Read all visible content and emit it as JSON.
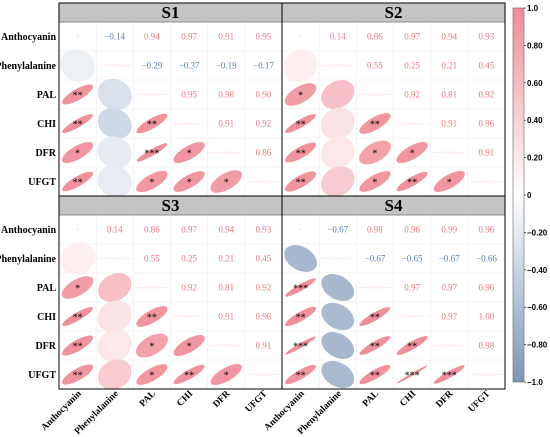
{
  "chart_data": {
    "type": "heatmap",
    "variables": [
      "Anthocyanin",
      "Phenylalanine",
      "PAL",
      "CHI",
      "DFR",
      "UFGT"
    ],
    "panels": [
      {
        "title": "S1",
        "r": [
          [
            null,
            -0.14,
            0.94,
            0.97,
            0.91,
            0.95
          ],
          [
            -0.14,
            null,
            -0.29,
            -0.37,
            -0.19,
            -0.17
          ],
          [
            0.94,
            -0.29,
            null,
            0.95,
            0.98,
            0.9
          ],
          [
            0.97,
            -0.37,
            0.95,
            null,
            0.91,
            0.92
          ],
          [
            0.91,
            -0.19,
            0.98,
            0.91,
            null,
            0.86
          ],
          [
            0.95,
            -0.17,
            0.9,
            0.92,
            0.86,
            null
          ]
        ],
        "labels": [
          [
            "",
            "−0.14",
            "0.94",
            "0.97",
            "0.91",
            "0.95"
          ],
          [
            "",
            "",
            "−0.29",
            "−0.37",
            "−0.19",
            "−0.17"
          ],
          [
            "",
            "",
            "",
            "0.95",
            "0.98",
            "0.90"
          ],
          [
            "",
            "",
            "",
            "",
            "0.91",
            "0.92"
          ],
          [
            "",
            "",
            "",
            "",
            "",
            "0.86"
          ],
          [
            "",
            "",
            "",
            "",
            "",
            ""
          ]
        ],
        "stars": [
          [
            "",
            "",
            "",
            "",
            "",
            ""
          ],
          [
            "",
            "",
            "",
            "",
            "",
            ""
          ],
          [
            "**",
            "",
            "",
            "",
            "",
            ""
          ],
          [
            "**",
            "",
            "**",
            "",
            "",
            ""
          ],
          [
            "*",
            "",
            "***",
            "*",
            "",
            ""
          ],
          [
            "**",
            "",
            "*",
            "*",
            "*",
            ""
          ]
        ]
      },
      {
        "title": "S2",
        "r": [
          [
            null,
            0.14,
            0.86,
            0.97,
            0.94,
            0.93
          ],
          [
            0.14,
            null,
            0.55,
            0.25,
            0.21,
            0.45
          ],
          [
            0.86,
            0.55,
            null,
            0.92,
            0.81,
            0.92
          ],
          [
            0.97,
            0.25,
            0.92,
            null,
            0.91,
            0.96
          ],
          [
            0.94,
            0.21,
            0.81,
            0.91,
            null,
            0.91
          ],
          [
            0.93,
            0.45,
            0.92,
            0.96,
            0.91,
            null
          ]
        ],
        "labels": [
          [
            "",
            "0.14",
            "0.86",
            "0.97",
            "0.94",
            "0.93"
          ],
          [
            "",
            "",
            "0.55",
            "0.25",
            "0.21",
            "0.45"
          ],
          [
            "",
            "",
            "",
            "0.92",
            "0.81",
            "0.92"
          ],
          [
            "",
            "",
            "",
            "",
            "0.91",
            "0.96"
          ],
          [
            "",
            "",
            "",
            "",
            "",
            "0.91"
          ],
          [
            "",
            "",
            "",
            "",
            "",
            ""
          ]
        ],
        "stars": [
          [
            "",
            "",
            "",
            "",
            "",
            ""
          ],
          [
            "",
            "",
            "",
            "",
            "",
            ""
          ],
          [
            "*",
            "",
            "",
            "",
            "",
            ""
          ],
          [
            "**",
            "",
            "**",
            "",
            "",
            ""
          ],
          [
            "**",
            "",
            "*",
            "*",
            "",
            ""
          ],
          [
            "**",
            "",
            "*",
            "**",
            "*",
            ""
          ]
        ]
      },
      {
        "title": "S3",
        "r": [
          [
            null,
            0.14,
            0.86,
            0.97,
            0.94,
            0.93
          ],
          [
            0.14,
            null,
            0.55,
            0.25,
            0.21,
            0.45
          ],
          [
            0.86,
            0.55,
            null,
            0.92,
            0.81,
            0.92
          ],
          [
            0.97,
            0.25,
            0.92,
            null,
            0.91,
            0.96
          ],
          [
            0.94,
            0.21,
            0.81,
            0.91,
            null,
            0.91
          ],
          [
            0.93,
            0.45,
            0.92,
            0.96,
            0.91,
            null
          ]
        ],
        "labels": [
          [
            "",
            "0.14",
            "0.86",
            "0.97",
            "0.94",
            "0.93"
          ],
          [
            "",
            "",
            "0.55",
            "0.25",
            "0.21",
            "0.45"
          ],
          [
            "",
            "",
            "",
            "0.92",
            "0.81",
            "0.92"
          ],
          [
            "",
            "",
            "",
            "",
            "0.91",
            "0.96"
          ],
          [
            "",
            "",
            "",
            "",
            "",
            "0.91"
          ],
          [
            "",
            "",
            "",
            "",
            "",
            ""
          ]
        ],
        "stars": [
          [
            "",
            "",
            "",
            "",
            "",
            ""
          ],
          [
            "",
            "",
            "",
            "",
            "",
            ""
          ],
          [
            "*",
            "",
            "",
            "",
            "",
            ""
          ],
          [
            "**",
            "",
            "**",
            "",
            "",
            ""
          ],
          [
            "**",
            "",
            "*",
            "*",
            "",
            ""
          ],
          [
            "**",
            "",
            "*",
            "**",
            "*",
            ""
          ]
        ]
      },
      {
        "title": "S4",
        "r": [
          [
            null,
            -0.67,
            0.98,
            0.96,
            0.99,
            0.96
          ],
          [
            -0.67,
            null,
            -0.67,
            -0.65,
            -0.67,
            -0.66
          ],
          [
            0.98,
            -0.67,
            null,
            0.97,
            0.97,
            0.96
          ],
          [
            0.96,
            -0.65,
            0.97,
            null,
            0.97,
            1.0
          ],
          [
            0.99,
            -0.67,
            0.97,
            0.97,
            null,
            0.98
          ],
          [
            0.96,
            -0.66,
            0.96,
            1.0,
            0.98,
            null
          ]
        ],
        "labels": [
          [
            "",
            "−0.67",
            "0.98",
            "0.96",
            "0.99",
            "0.96"
          ],
          [
            "",
            "",
            "−0.67",
            "−0.65",
            "−0.67",
            "−0.66"
          ],
          [
            "",
            "",
            "",
            "0.97",
            "0.97",
            "0.96"
          ],
          [
            "",
            "",
            "",
            "",
            "0.97",
            "1.00"
          ],
          [
            "",
            "",
            "",
            "",
            "",
            "0.98"
          ],
          [
            "",
            "",
            "",
            "",
            "",
            ""
          ]
        ],
        "stars": [
          [
            "",
            "",
            "",
            "",
            "",
            ""
          ],
          [
            "",
            "",
            "",
            "",
            "",
            ""
          ],
          [
            "***",
            "",
            "",
            "",
            "",
            ""
          ],
          [
            "**",
            "",
            "**",
            "",
            "",
            ""
          ],
          [
            "***",
            "",
            "**",
            "**",
            "",
            ""
          ],
          [
            "**",
            "",
            "**",
            "***",
            "***",
            ""
          ]
        ]
      }
    ],
    "colorbar": {
      "ticks": [
        "1.0",
        "0.80",
        "0.60",
        "0.40",
        "0.20",
        "0",
        "−0.20",
        "−0.40",
        "−0.60",
        "−0.80",
        "−1.0"
      ],
      "range": [
        -1,
        1
      ],
      "colors": {
        "positive": "#F08C97",
        "zero": "#FFFFFF",
        "negative": "#7B95B8"
      }
    },
    "colors": {
      "panel_header": "#C4C4C4",
      "positive_text": "#E8777F",
      "negative_text": "#5B7FAE"
    }
  }
}
